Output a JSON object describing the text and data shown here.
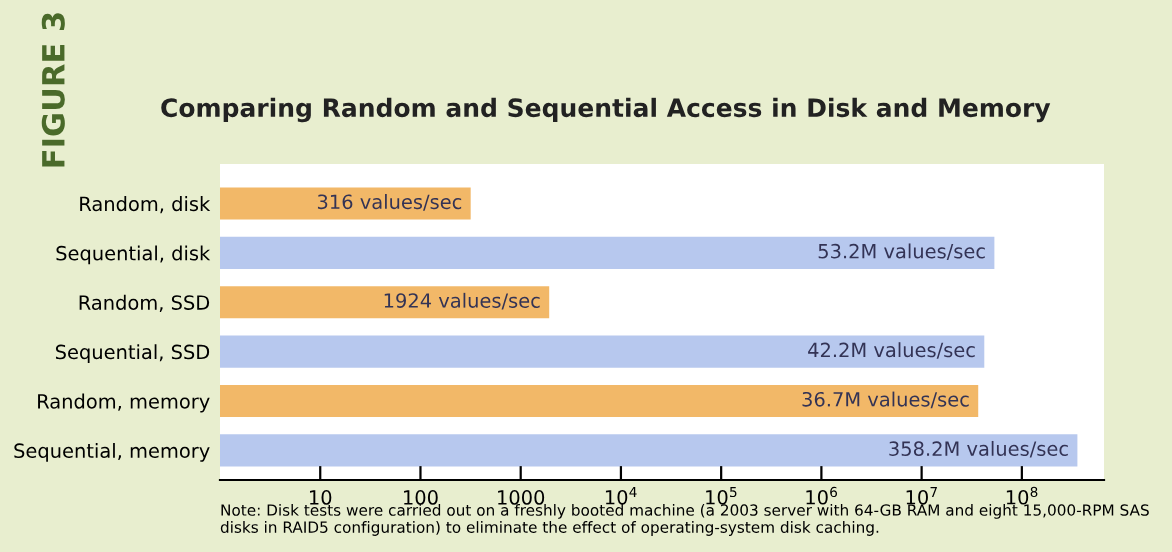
{
  "chart_data": {
    "type": "bar",
    "orientation": "horizontal",
    "log": "x",
    "title": "Comparing Random and Sequential Access in Disk and Memory",
    "categories": [
      "Random, disk",
      "Sequential, disk",
      "Random, SSD",
      "Sequential, SSD",
      "Random, memory",
      "Sequential, memory"
    ],
    "values": [
      316,
      53200000,
      1924,
      42200000,
      36700000,
      358200000
    ],
    "colors": [
      "#f2b868",
      "#b7c8ee",
      "#f2b868",
      "#b7c8ee",
      "#f2b868",
      "#b7c8ee"
    ],
    "value_labels": [
      "316 values/sec",
      "53.2M values/sec",
      "1924 values/sec",
      "42.2M values/sec",
      "36.7M values/sec",
      "358.2M values/sec"
    ],
    "xlim": [
      1,
      660000000
    ],
    "xticks": [
      10,
      100,
      1000,
      {
        "value": 10000,
        "label": "10$^{4}$"
      },
      {
        "value": 100000,
        "label": "10$^{5}$"
      },
      {
        "value": 1000000,
        "label": "10$^{6}$"
      },
      {
        "value": 10000000,
        "label": "10$^{7}$"
      },
      {
        "value": 100000000,
        "label": "10$^{8}$"
      }
    ],
    "grid": false,
    "annotations": [
      "FIGURE 3",
      "Note: Disk tests were carried out on a freshly booted machine (a 2003 server with 64-GB RAM and eight 15,000-RPM SAS disks in RAID5 configuration) to eliminate the effect of operating-system disk caching."
    ]
  }
}
